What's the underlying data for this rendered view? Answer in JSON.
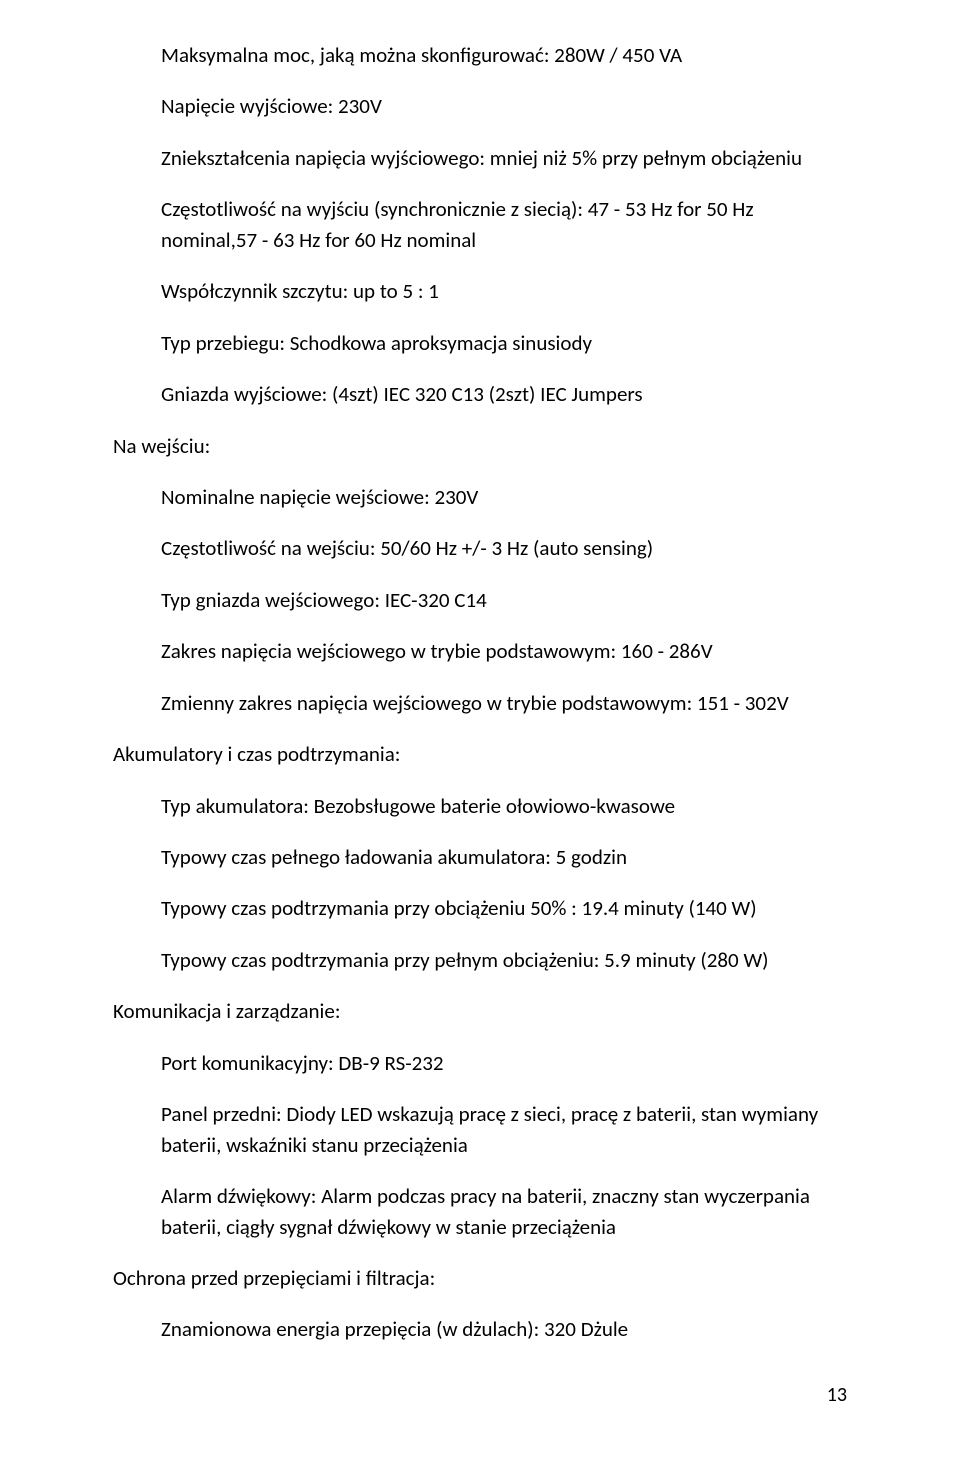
{
  "out": {
    "max_power": "Maksymalna moc, jaką można skonfigurować: 280W / 450 VA",
    "voltage_out": "Napięcie wyjściowe: 230V",
    "distortion": "Zniekształcenia napięcia wyjściowego: mniej niż 5% przy pełnym obciążeniu",
    "freq_out": "Częstotliwość na wyjściu (synchronicznie z siecią): 47 - 53 Hz for 50 Hz nominal,57 - 63 Hz for 60 Hz nominal",
    "crest": "Współczynnik szczytu: up to 5 : 1",
    "waveform": "Typ przebiegu: Schodkowa aproksymacja sinusiody",
    "outlets": "Gniazda wyjściowe: (4szt) IEC 320 C13    (2szt) IEC Jumpers"
  },
  "in_header": "Na wejściu:",
  "in": {
    "nominal_v": "Nominalne napięcie wejściowe: 230V",
    "freq_in": "Częstotliwość na wejściu: 50/60 Hz +/- 3 Hz (auto sensing)",
    "plug": "Typ gniazda wejściowego: IEC-320 C14",
    "range_main": "Zakres napięcia wejściowego w trybie podstawowym: 160 - 286V",
    "range_var": "Zmienny zakres napięcia wejściowego w trybie podstawowym: 151 - 302V"
  },
  "batt_header": "Akumulatory i czas podtrzymania:",
  "batt": {
    "type": "Typ akumulatora: Bezobsługowe baterie ołowiowo-kwasowe",
    "recharge": "Typowy czas pełnego ładowania akumulatora: 5 godzin",
    "half": "Typowy czas podtrzymania przy obciążeniu 50% : 19.4 minuty (140 W)",
    "full": "Typowy czas podtrzymania przy pełnym obciążeniu: 5.9 minuty (280 W)"
  },
  "comm_header": "Komunikacja i zarządzanie:",
  "comm": {
    "port": "Port komunikacyjny: DB-9 RS-232",
    "panel": "Panel przedni: Diody LED wskazują pracę z sieci, pracę z baterii, stan wymiany baterii, wskaźniki stanu przeciążenia",
    "alarm": "Alarm dźwiękowy: Alarm podczas pracy na baterii, znaczny stan wyczerpania baterii, ciągły sygnał dźwiękowy w stanie przeciążenia"
  },
  "surge_header": "Ochrona przed przepięciami i filtracja:",
  "surge": {
    "joules": "Znamionowa energia przepięcia (w dżulach): 320 Dżule"
  },
  "page_number": "13"
}
